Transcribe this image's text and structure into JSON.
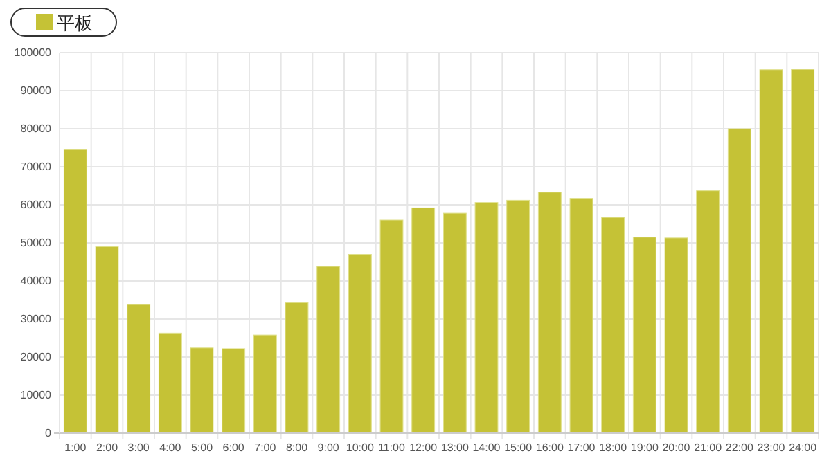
{
  "chart_data": {
    "type": "bar",
    "categories": [
      "1:00",
      "2:00",
      "3:00",
      "4:00",
      "5:00",
      "6:00",
      "7:00",
      "8:00",
      "9:00",
      "10:00",
      "11:00",
      "12:00",
      "13:00",
      "14:00",
      "15:00",
      "16:00",
      "17:00",
      "18:00",
      "19:00",
      "20:00",
      "21:00",
      "22:00",
      "23:00",
      "24:00"
    ],
    "series": [
      {
        "name": "平板",
        "color": "#c5c236",
        "values": [
          74500,
          49000,
          33800,
          26300,
          22400,
          22200,
          25800,
          34300,
          43800,
          47000,
          56000,
          59200,
          57800,
          60600,
          61200,
          63300,
          61700,
          56700,
          51500,
          51300,
          63700,
          80000,
          95500,
          95600
        ]
      }
    ],
    "ylim": [
      0,
      100000
    ],
    "yticks": [
      0,
      10000,
      20000,
      30000,
      40000,
      50000,
      60000,
      70000,
      80000,
      90000,
      100000
    ],
    "grid": true,
    "legend": "top left"
  }
}
